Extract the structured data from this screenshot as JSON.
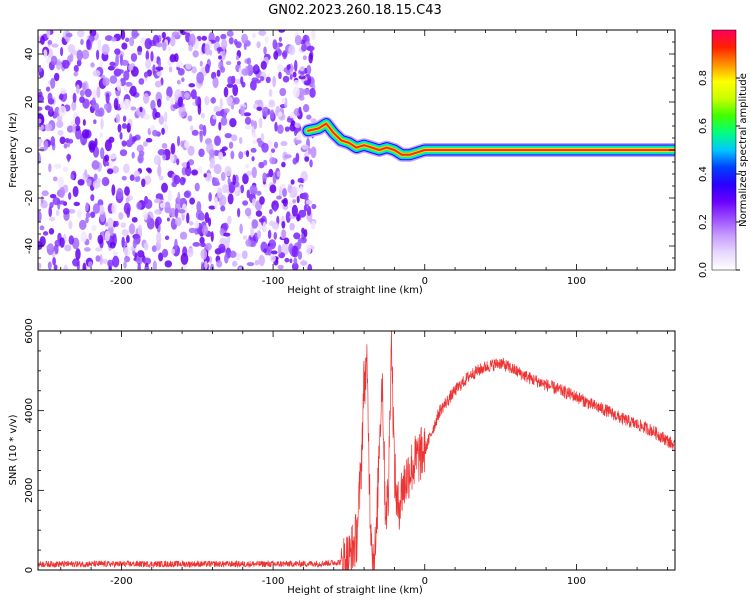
{
  "title": "GN02.2023.260.18.15.C43",
  "chart_data": [
    {
      "type": "heatmap",
      "title": "GN02.2023.260.18.15.C43",
      "xlabel": "Height of straight line (km)",
      "ylabel": "Frequency (Hz)",
      "xlim": [
        -255,
        165
      ],
      "ylim": [
        -50,
        50
      ],
      "xticks": [
        -200,
        -100,
        0,
        100
      ],
      "yticks": [
        -40,
        -20,
        0,
        20,
        40
      ],
      "noise_region_x": [
        -255,
        -75
      ],
      "signal_band": {
        "description_points": [
          {
            "x": -77,
            "y": 8
          },
          {
            "x": -70,
            "y": 9
          },
          {
            "x": -65,
            "y": 11
          },
          {
            "x": -60,
            "y": 7
          },
          {
            "x": -55,
            "y": 4
          },
          {
            "x": -50,
            "y": 3
          },
          {
            "x": -45,
            "y": 1
          },
          {
            "x": -40,
            "y": 2
          },
          {
            "x": -35,
            "y": 1
          },
          {
            "x": -30,
            "y": 0
          },
          {
            "x": -25,
            "y": 1
          },
          {
            "x": -20,
            "y": 0
          },
          {
            "x": -15,
            "y": -2
          },
          {
            "x": -10,
            "y": -2
          },
          {
            "x": -5,
            "y": -1
          },
          {
            "x": 0,
            "y": 0
          },
          {
            "x": 165,
            "y": 0
          }
        ]
      },
      "colorbar": {
        "label": "Normalized spectral amplitude",
        "range": [
          0.0,
          1.0
        ],
        "ticks": [
          "0.0",
          "0.2",
          "0.4",
          "0.6",
          "0.8"
        ],
        "colors": [
          "#ffffff",
          "#e8d8ff",
          "#c89cff",
          "#9c4dff",
          "#6a00ff",
          "#2a00ff",
          "#0040ff",
          "#00c8ff",
          "#00ff80",
          "#40ff00",
          "#c8ff00",
          "#ffff00",
          "#ff9000",
          "#ff2000",
          "#ff0060"
        ]
      }
    },
    {
      "type": "line",
      "xlabel": "Height of straight line (km)",
      "ylabel": "SNR (10 * v/v)",
      "xlim": [
        -255,
        165
      ],
      "ylim": [
        0,
        6000
      ],
      "xticks": [
        -200,
        -100,
        0,
        100
      ],
      "yticks": [
        0,
        2000,
        4000,
        6000
      ],
      "color": "#ee3333",
      "series": [
        {
          "x": [
            -255,
            -200,
            -150,
            -100,
            -70,
            -55,
            -50,
            -45,
            -42,
            -40,
            -38,
            -36,
            -34,
            -32,
            -30,
            -28,
            -26,
            -24,
            -22,
            -20,
            -18,
            -15,
            -10,
            -5,
            0,
            5,
            10,
            20,
            30,
            40,
            50,
            60,
            70,
            80,
            90,
            100,
            110,
            120,
            130,
            140,
            150,
            160,
            165
          ],
          "values": [
            150,
            150,
            150,
            150,
            160,
            200,
            300,
            800,
            2500,
            4800,
            5000,
            1500,
            300,
            600,
            3200,
            4900,
            1500,
            1800,
            6000,
            2500,
            1500,
            2000,
            2500,
            2800,
            3000,
            3500,
            4000,
            4500,
            4900,
            5100,
            5200,
            5000,
            4800,
            4650,
            4500,
            4350,
            4150,
            4000,
            3800,
            3650,
            3500,
            3250,
            3100
          ]
        }
      ]
    }
  ]
}
